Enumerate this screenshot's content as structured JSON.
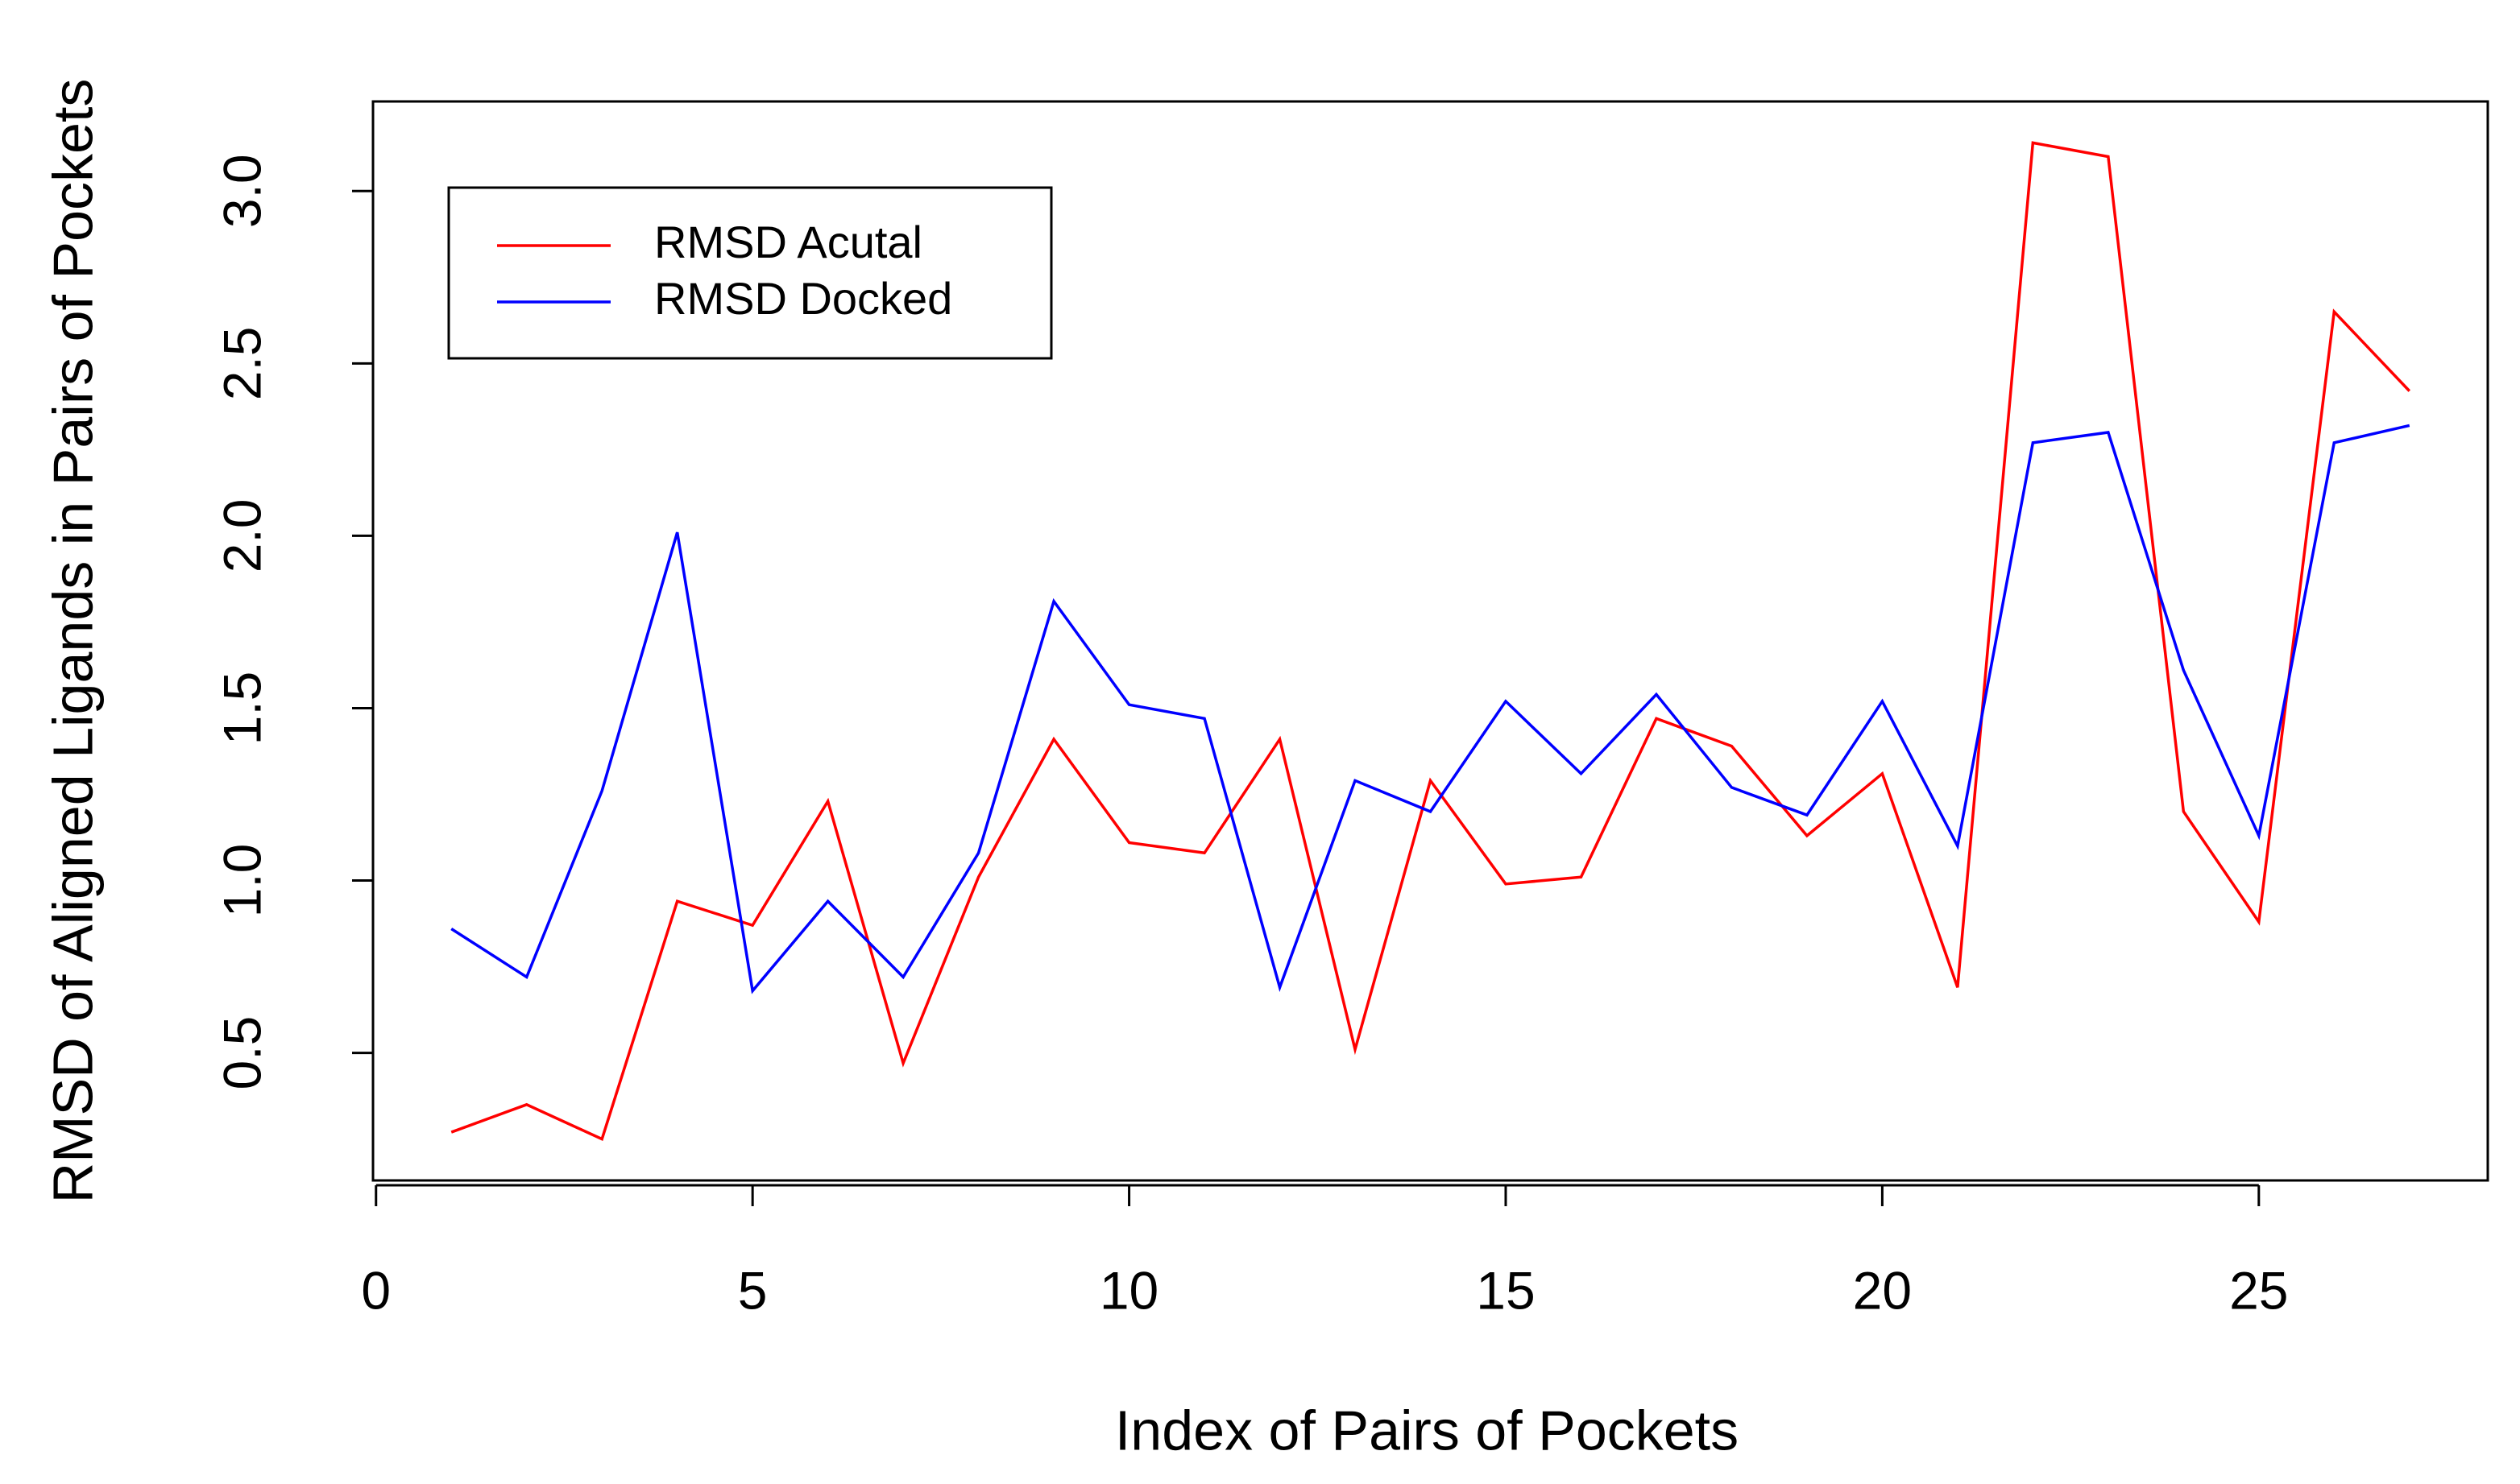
{
  "chart_data": {
    "type": "line",
    "x_label": "Index of Pairs of Pockets",
    "y_label": "RMSD of Aligned Ligands in Pairs of Pockets",
    "x": [
      1,
      2,
      3,
      4,
      5,
      6,
      7,
      8,
      9,
      10,
      11,
      12,
      13,
      14,
      15,
      16,
      17,
      18,
      19,
      20,
      21,
      22,
      23,
      24,
      25,
      26,
      27
    ],
    "series": [
      {
        "name": "RMSD Acutal",
        "color": "#ff0000",
        "values": [
          0.27,
          0.35,
          0.25,
          0.94,
          0.87,
          1.23,
          0.47,
          1.01,
          1.41,
          1.11,
          1.08,
          1.41,
          0.51,
          1.29,
          0.99,
          1.01,
          1.47,
          1.39,
          1.13,
          1.31,
          0.69,
          3.14,
          3.1,
          1.2,
          0.88,
          2.65,
          2.42
        ]
      },
      {
        "name": "RMSD Docked",
        "color": "#0000ff",
        "values": [
          0.86,
          0.72,
          1.26,
          2.01,
          0.68,
          0.94,
          0.72,
          1.08,
          1.81,
          1.51,
          1.47,
          0.69,
          1.29,
          1.2,
          1.52,
          1.31,
          1.54,
          1.27,
          1.19,
          1.52,
          1.1,
          2.27,
          2.3,
          1.61,
          1.13,
          2.27,
          2.32
        ]
      }
    ],
    "xlim": [
      -0.04,
      28.04
    ],
    "xticks": [
      0,
      5,
      10,
      15,
      20,
      25
    ],
    "ylim": [
      0.13,
      3.26
    ],
    "yticks": [
      0.5,
      {
        "value": 1,
        "label": "1.0"
      },
      1.5,
      {
        "value": 2,
        "label": "2.0"
      },
      2.5,
      {
        "value": 3,
        "label": "3.0"
      }
    ],
    "legend": "top-left",
    "grid": false
  }
}
